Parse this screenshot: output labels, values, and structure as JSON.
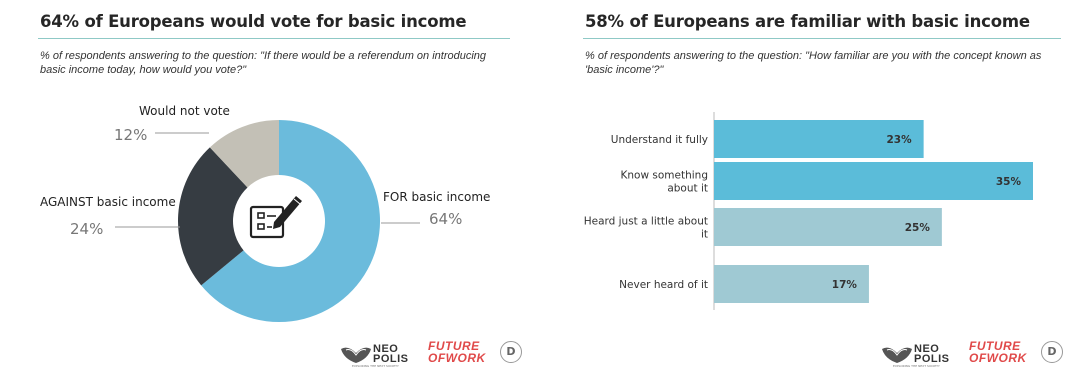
{
  "left": {
    "title": "64% of Europeans would vote for basic income",
    "subtitle": "% of respondents answering to the question: \"If there would be a referendum on introducing basic income today, how would you vote?\""
  },
  "right": {
    "title": "58% of Europeans are familiar with basic income",
    "subtitle": "% of respondents answering to the question: \"How familiar are you with the concept known as 'basic income'?\""
  },
  "logos": {
    "neo_line1": "NEO",
    "neo_line2": "POLIS",
    "neo_tag": "EXPLORING THE NEXT SOCIETY",
    "fow_line1": "FUTURE",
    "fow_line2": "OFWORK",
    "d_mark": "D"
  },
  "colors": {
    "for": "#6bbbdc",
    "against": "#363c42",
    "would_not_vote": "#c3c0b6",
    "bar_strong": "#5bbcd9",
    "bar_light": "#9fc9d3",
    "rule": "#8fc9c6"
  },
  "chart_data": [
    {
      "type": "pie",
      "variant": "donut",
      "center_icon": "ballot-checklist-icon",
      "slices": [
        {
          "label": "FOR basic income",
          "value": 64,
          "display": "64%"
        },
        {
          "label": "AGAINST basic income",
          "value": 24,
          "display": "24%"
        },
        {
          "label": "Would not vote",
          "value": 12,
          "display": "12%"
        }
      ]
    },
    {
      "type": "bar",
      "orientation": "horizontal",
      "categories": [
        "Understand it fully",
        "Know something about it",
        "Heard just a little about it",
        "Never heard of it"
      ],
      "category_lines": [
        [
          "Understand it fully"
        ],
        [
          "Know something",
          "about it"
        ],
        [
          "Heard just a little about",
          "it"
        ],
        [
          "Never heard of it"
        ]
      ],
      "values": [
        23,
        35,
        25,
        17
      ],
      "display": [
        "23%",
        "35%",
        "25%",
        "17%"
      ],
      "bar_shade": [
        "strong",
        "strong",
        "light",
        "light"
      ],
      "xlim": [
        0,
        35
      ]
    }
  ]
}
